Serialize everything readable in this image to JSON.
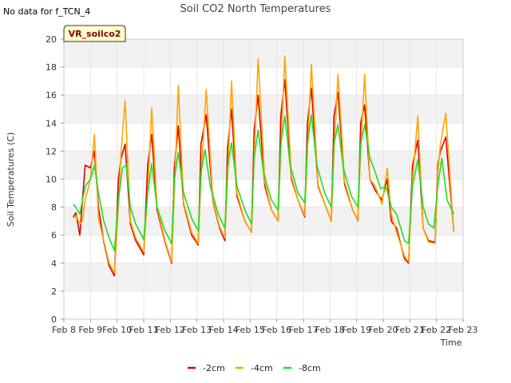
{
  "header": {
    "no_data_note": "No data for f_TCN_4"
  },
  "station_label": "VR_soilco2",
  "colors": {
    "band": "#f2f2f2",
    "grid": "#ffffff",
    "axis": "#cccccc",
    "station_bg": "#ffffcc",
    "station_border": "#333333"
  },
  "chart_data": {
    "type": "line",
    "title": "Soil CO2 North Temperatures",
    "xlabel": "Time",
    "ylabel": "Soil Temperatures (C)",
    "xlim": [
      8,
      23
    ],
    "ylim": [
      0,
      20
    ],
    "x_ticks": [
      8,
      9,
      10,
      11,
      12,
      13,
      14,
      15,
      16,
      17,
      18,
      19,
      20,
      21,
      22,
      23
    ],
    "x_tick_labels": [
      "Feb 8",
      "Feb 9",
      "Feb 10",
      "Feb 11",
      "Feb 12",
      "Feb 13",
      "Feb 14",
      "Feb 15",
      "Feb 16",
      "Feb 17",
      "Feb 18",
      "Feb 19",
      "Feb 20",
      "Feb 21",
      "Feb 22",
      "Feb 23"
    ],
    "y_ticks": [
      0,
      2,
      4,
      6,
      8,
      10,
      12,
      14,
      16,
      18,
      20
    ],
    "y_tick_labels": [
      "0",
      "2",
      "4",
      "6",
      "8",
      "10",
      "12",
      "14",
      "16",
      "18",
      "20"
    ],
    "legend_position": "bottom-center",
    "series": [
      {
        "name": "-2cm",
        "color": "#dd0000",
        "x": [
          8.35,
          8.45,
          8.6,
          8.7,
          8.8,
          9.0,
          9.15,
          9.3,
          9.5,
          9.7,
          9.9,
          10.05,
          10.15,
          10.3,
          10.5,
          10.7,
          11.0,
          11.15,
          11.3,
          11.5,
          11.8,
          12.05,
          12.15,
          12.3,
          12.5,
          12.8,
          13.05,
          13.15,
          13.35,
          13.6,
          13.85,
          14.05,
          14.15,
          14.3,
          14.5,
          14.8,
          15.05,
          15.15,
          15.3,
          15.55,
          15.8,
          16.05,
          16.15,
          16.3,
          16.55,
          16.8,
          17.05,
          17.15,
          17.3,
          17.55,
          17.85,
          18.05,
          18.15,
          18.3,
          18.55,
          18.85,
          19.05,
          19.15,
          19.3,
          19.5,
          19.7,
          19.95,
          20.15,
          20.3,
          20.5,
          20.8,
          20.95,
          21.1,
          21.3,
          21.5,
          21.7,
          21.95,
          22.05,
          22.15,
          22.35,
          22.65
        ],
        "y": [
          7.3,
          7.6,
          6.0,
          8.5,
          11.0,
          10.8,
          12.0,
          8.0,
          5.5,
          3.8,
          3.1,
          10.0,
          11.5,
          12.5,
          6.8,
          5.6,
          4.6,
          11.0,
          13.2,
          7.8,
          5.5,
          4.0,
          10.8,
          13.8,
          8.2,
          6.0,
          5.3,
          12.5,
          14.6,
          8.4,
          6.5,
          5.6,
          12.2,
          15.0,
          8.8,
          7.0,
          6.2,
          13.5,
          16.0,
          9.5,
          7.8,
          7.0,
          14.5,
          17.1,
          10.0,
          8.5,
          7.3,
          14.0,
          16.5,
          9.5,
          8.0,
          7.0,
          14.5,
          16.2,
          9.6,
          7.8,
          7.0,
          14.0,
          15.3,
          10.0,
          9.2,
          8.5,
          10.0,
          7.0,
          6.5,
          4.3,
          4.0,
          11.0,
          12.8,
          6.5,
          5.6,
          5.5,
          11.0,
          12.0,
          13.0,
          6.3
        ]
      },
      {
        "name": "-4cm",
        "color": "#ffa500",
        "x": [
          8.35,
          8.45,
          8.6,
          8.7,
          8.8,
          9.0,
          9.15,
          9.3,
          9.5,
          9.7,
          9.9,
          10.05,
          10.15,
          10.3,
          10.5,
          10.7,
          11.0,
          11.15,
          11.3,
          11.5,
          11.8,
          12.05,
          12.15,
          12.3,
          12.5,
          12.8,
          13.05,
          13.15,
          13.35,
          13.6,
          13.85,
          14.05,
          14.15,
          14.3,
          14.5,
          14.8,
          15.05,
          15.15,
          15.3,
          15.55,
          15.8,
          16.05,
          16.15,
          16.3,
          16.55,
          16.8,
          17.05,
          17.15,
          17.3,
          17.55,
          17.85,
          18.05,
          18.15,
          18.3,
          18.55,
          18.85,
          19.05,
          19.15,
          19.3,
          19.5,
          19.7,
          19.95,
          20.15,
          20.3,
          20.5,
          20.8,
          20.95,
          21.1,
          21.3,
          21.5,
          21.7,
          21.95,
          22.05,
          22.15,
          22.35,
          22.65
        ],
        "y": [
          7.2,
          7.4,
          6.8,
          7.0,
          8.5,
          10.0,
          13.2,
          7.2,
          5.6,
          4.0,
          3.3,
          8.0,
          12.0,
          15.6,
          7.0,
          5.8,
          4.8,
          9.0,
          15.1,
          8.0,
          5.6,
          4.1,
          9.0,
          16.7,
          8.3,
          6.2,
          5.4,
          10.0,
          16.4,
          8.5,
          6.6,
          5.8,
          10.0,
          17.0,
          9.0,
          7.0,
          6.2,
          11.5,
          18.6,
          9.8,
          7.8,
          7.0,
          12.0,
          18.8,
          10.2,
          8.5,
          7.4,
          12.0,
          18.2,
          9.6,
          8.0,
          7.0,
          12.0,
          17.5,
          9.8,
          7.8,
          7.0,
          12.0,
          17.5,
          10.0,
          9.5,
          8.2,
          10.8,
          7.5,
          6.2,
          4.5,
          4.1,
          10.0,
          14.5,
          6.5,
          5.5,
          5.4,
          10.5,
          12.5,
          14.7,
          6.2
        ]
      },
      {
        "name": "-8cm",
        "color": "#22dd22",
        "x": [
          8.35,
          8.45,
          8.6,
          8.8,
          9.0,
          9.15,
          9.3,
          9.5,
          9.7,
          9.9,
          10.05,
          10.2,
          10.35,
          10.5,
          10.7,
          11.0,
          11.15,
          11.3,
          11.5,
          11.8,
          12.05,
          12.15,
          12.3,
          12.5,
          12.8,
          13.05,
          13.15,
          13.3,
          13.5,
          13.8,
          14.05,
          14.15,
          14.3,
          14.5,
          14.8,
          15.05,
          15.15,
          15.3,
          15.5,
          15.8,
          16.05,
          16.15,
          16.3,
          16.5,
          16.8,
          17.05,
          17.15,
          17.3,
          17.5,
          17.8,
          18.05,
          18.15,
          18.3,
          18.5,
          18.8,
          19.05,
          19.15,
          19.3,
          19.5,
          19.7,
          19.9,
          20.1,
          20.3,
          20.5,
          20.8,
          20.95,
          21.1,
          21.3,
          21.5,
          21.7,
          21.9,
          22.05,
          22.2,
          22.4,
          22.65
        ],
        "y": [
          8.2,
          8.0,
          7.5,
          9.5,
          10.0,
          11.0,
          9.0,
          7.0,
          5.8,
          4.9,
          8.5,
          10.8,
          11.0,
          8.0,
          6.8,
          5.7,
          9.0,
          11.1,
          8.0,
          6.3,
          5.4,
          10.0,
          11.9,
          9.0,
          7.2,
          6.3,
          10.5,
          12.1,
          9.5,
          7.5,
          6.5,
          10.8,
          12.6,
          9.5,
          7.8,
          6.8,
          11.5,
          13.5,
          10.5,
          8.5,
          7.8,
          12.5,
          14.5,
          11.0,
          9.0,
          8.3,
          12.5,
          14.6,
          11.0,
          9.0,
          8.0,
          12.5,
          13.9,
          10.8,
          8.8,
          8.0,
          12.5,
          13.9,
          11.5,
          10.5,
          9.3,
          9.5,
          8.0,
          7.5,
          5.6,
          5.4,
          9.5,
          11.4,
          8.0,
          6.8,
          6.5,
          9.5,
          11.5,
          8.5,
          7.5
        ]
      }
    ]
  }
}
